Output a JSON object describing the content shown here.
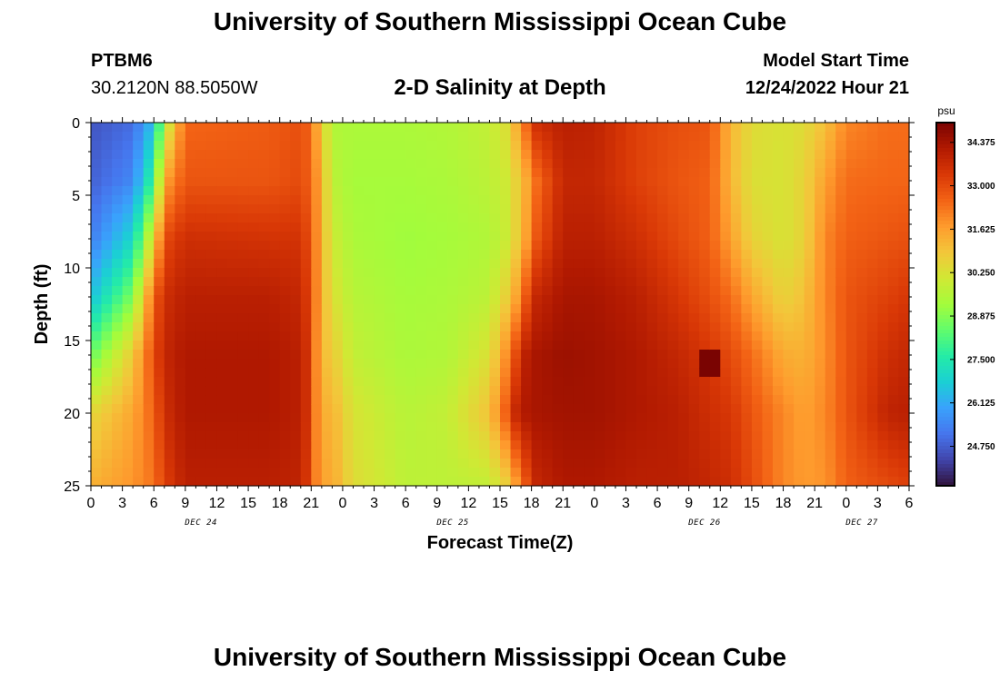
{
  "header": {
    "title": "University of Southern Mississippi Ocean Cube",
    "station": "PTBM6",
    "coords": "30.2120N  88.5050W",
    "subtitle": "2-D Salinity at Depth",
    "model_start_label": "Model Start Time",
    "model_start_value": "12/24/2022 Hour 21"
  },
  "footer": {
    "title": "University of Southern Mississippi Ocean Cube"
  },
  "chart_data": {
    "type": "heatmap",
    "title": "2-D Salinity at Depth",
    "xlabel": "Forecast Time(Z)",
    "ylabel": "Depth (ft)",
    "xlim_hours": [
      0,
      78
    ],
    "ylim": [
      0,
      25
    ],
    "y_ticks": [
      "0",
      "5",
      "10",
      "15",
      "20",
      "25"
    ],
    "x_tick_labels": [
      "0",
      "3",
      "6",
      "9",
      "12",
      "15",
      "18",
      "21",
      "0",
      "3",
      "6",
      "9",
      "12",
      "15",
      "18",
      "21",
      "0",
      "3",
      "6",
      "9",
      "12",
      "15",
      "18",
      "21",
      "0",
      "3",
      "6"
    ],
    "day_labels": [
      {
        "hour": 10.5,
        "label": "DEC 24"
      },
      {
        "hour": 34.5,
        "label": "DEC 25"
      },
      {
        "hour": 58.5,
        "label": "DEC 26"
      },
      {
        "hour": 73.5,
        "label": "DEC 27"
      }
    ],
    "colorbar": {
      "unit": "psu",
      "min": 23.5,
      "max": 35.0,
      "ticks": [
        "34.375",
        "33.000",
        "31.625",
        "30.250",
        "28.875",
        "27.500",
        "26.125",
        "24.750"
      ],
      "colors": [
        "#30123b",
        "#4145ab",
        "#4675ed",
        "#39a2fc",
        "#1bcfd4",
        "#24eca6",
        "#61fc6c",
        "#a4fc3b",
        "#d1e834",
        "#f3c63a",
        "#fe9b2d",
        "#f36315",
        "#d93806",
        "#b11901",
        "#7a0402"
      ]
    },
    "profiles": [
      {
        "t": 0,
        "v": [
          24.6,
          24.8,
          25.3,
          26.5,
          28.5,
          30.5,
          31.3
        ]
      },
      {
        "t": 4,
        "v": [
          25.0,
          25.5,
          27.0,
          28.8,
          30.8,
          31.5,
          31.8
        ]
      },
      {
        "t": 6,
        "v": [
          26.5,
          28.0,
          30.5,
          32.6,
          33.0,
          32.6,
          32.3
        ]
      },
      {
        "t": 7,
        "v": [
          29.5,
          31.5,
          33.0,
          33.6,
          33.8,
          33.6,
          33.2
        ]
      },
      {
        "t": 9,
        "v": [
          32.5,
          32.8,
          33.6,
          34.0,
          34.2,
          34.2,
          34.0
        ]
      },
      {
        "t": 17,
        "v": [
          32.7,
          32.8,
          33.5,
          34.0,
          34.2,
          34.2,
          34.0
        ]
      },
      {
        "t": 20,
        "v": [
          32.9,
          33.0,
          33.5,
          33.8,
          34.0,
          34.0,
          33.9
        ]
      },
      {
        "t": 21,
        "v": [
          32.5,
          32.5,
          32.8,
          33.0,
          33.2,
          33.2,
          33.0
        ]
      },
      {
        "t": 21.8,
        "v": [
          31.0,
          31.5,
          31.5,
          31.5,
          31.2,
          31.3,
          31.5
        ]
      },
      {
        "t": 23,
        "v": [
          29.5,
          29.7,
          30.0,
          30.3,
          30.8,
          31.3,
          31.5
        ]
      },
      {
        "t": 25,
        "v": [
          29.4,
          29.3,
          29.4,
          29.6,
          29.8,
          30.2,
          30.4
        ]
      },
      {
        "t": 30,
        "v": [
          29.4,
          29.3,
          29.2,
          29.3,
          29.4,
          29.6,
          29.7
        ]
      },
      {
        "t": 34,
        "v": [
          29.5,
          29.4,
          29.3,
          29.4,
          29.5,
          29.8,
          29.7
        ]
      },
      {
        "t": 38,
        "v": [
          29.8,
          29.7,
          29.5,
          29.7,
          30.3,
          31.0,
          29.8
        ]
      },
      {
        "t": 39.5,
        "v": [
          30.3,
          30.0,
          29.9,
          30.6,
          31.8,
          32.6,
          30.6
        ]
      },
      {
        "t": 40.5,
        "v": [
          31.3,
          30.6,
          30.6,
          31.5,
          33.0,
          33.8,
          31.6
        ]
      },
      {
        "t": 41.5,
        "v": [
          32.5,
          31.4,
          31.6,
          32.8,
          34.0,
          34.2,
          32.8
        ]
      },
      {
        "t": 42.5,
        "v": [
          33.6,
          32.4,
          32.8,
          33.8,
          34.3,
          34.3,
          33.8
        ]
      },
      {
        "t": 45,
        "v": [
          34.0,
          33.8,
          34.0,
          34.3,
          34.5,
          34.4,
          34.2
        ]
      },
      {
        "t": 48,
        "v": [
          33.9,
          33.8,
          34.0,
          34.3,
          34.4,
          34.4,
          34.2
        ]
      },
      {
        "t": 52,
        "v": [
          33.2,
          33.2,
          33.6,
          34.0,
          34.2,
          34.2,
          34.0
        ]
      },
      {
        "t": 56,
        "v": [
          32.9,
          32.8,
          33.0,
          33.4,
          33.8,
          34.0,
          34.0
        ]
      },
      {
        "t": 59,
        "v": [
          32.8,
          32.6,
          32.6,
          32.9,
          33.4,
          33.6,
          33.8
        ]
      },
      {
        "t": 61,
        "v": [
          31.2,
          31.2,
          31.6,
          32.4,
          33.0,
          33.4,
          33.6
        ]
      },
      {
        "t": 63,
        "v": [
          30.4,
          30.3,
          30.6,
          31.5,
          32.4,
          32.8,
          33.0
        ]
      },
      {
        "t": 66,
        "v": [
          30.2,
          30.2,
          30.2,
          30.6,
          31.4,
          32.0,
          32.0
        ]
      },
      {
        "t": 68,
        "v": [
          30.4,
          30.6,
          30.6,
          31.0,
          31.3,
          31.6,
          31.7
        ]
      },
      {
        "t": 70,
        "v": [
          31.0,
          31.6,
          32.0,
          32.0,
          31.9,
          32.0,
          31.8
        ]
      },
      {
        "t": 72,
        "v": [
          32.0,
          32.4,
          32.6,
          32.8,
          32.8,
          32.8,
          32.6
        ]
      },
      {
        "t": 76,
        "v": [
          32.4,
          32.5,
          32.8,
          33.2,
          33.6,
          33.9,
          33.0
        ]
      },
      {
        "t": 78,
        "v": [
          32.4,
          32.5,
          32.9,
          33.4,
          33.8,
          34.0,
          33.2
        ]
      }
    ],
    "profile_depths": [
      0,
      4,
      8,
      12,
      16,
      20,
      25
    ],
    "hotspot": {
      "t_start": 58.5,
      "t_end": 60,
      "d_start": 15.5,
      "d_end": 17.6,
      "value": 35.0
    }
  }
}
